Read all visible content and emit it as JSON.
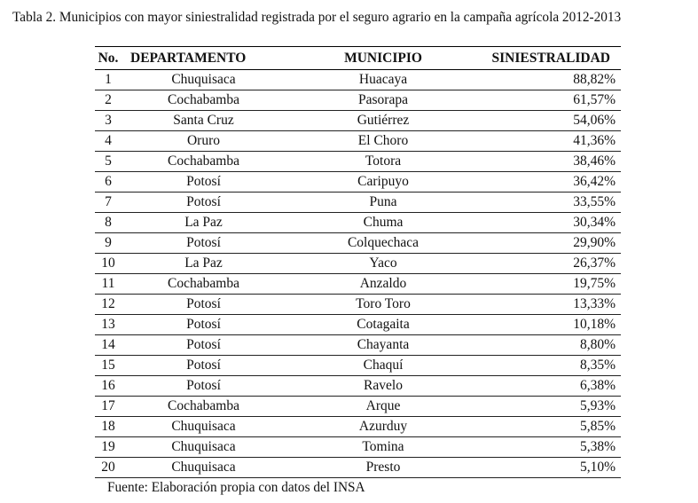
{
  "title": "Tabla 2. Municipios con mayor siniestralidad registrada por el seguro agrario en la campaña agrícola 2012-2013",
  "headers": {
    "no": "No.",
    "departamento": "DEPARTAMENTO",
    "municipio": "MUNICIPIO",
    "siniestralidad": "SINIESTRALIDAD"
  },
  "rows": [
    {
      "no": "1",
      "departamento": "Chuquisaca",
      "municipio": "Huacaya",
      "siniestralidad": "88,82%"
    },
    {
      "no": "2",
      "departamento": "Cochabamba",
      "municipio": "Pasorapa",
      "siniestralidad": "61,57%"
    },
    {
      "no": "3",
      "departamento": "Santa Cruz",
      "municipio": "Gutiérrez",
      "siniestralidad": "54,06%"
    },
    {
      "no": "4",
      "departamento": "Oruro",
      "municipio": "El Choro",
      "siniestralidad": "41,36%"
    },
    {
      "no": "5",
      "departamento": "Cochabamba",
      "municipio": "Totora",
      "siniestralidad": "38,46%"
    },
    {
      "no": "6",
      "departamento": "Potosí",
      "municipio": "Caripuyo",
      "siniestralidad": "36,42%"
    },
    {
      "no": "7",
      "departamento": "Potosí",
      "municipio": "Puna",
      "siniestralidad": "33,55%"
    },
    {
      "no": "8",
      "departamento": "La Paz",
      "municipio": "Chuma",
      "siniestralidad": "30,34%"
    },
    {
      "no": "9",
      "departamento": "Potosí",
      "municipio": "Colquechaca",
      "siniestralidad": "29,90%"
    },
    {
      "no": "10",
      "departamento": "La Paz",
      "municipio": "Yaco",
      "siniestralidad": "26,37%"
    },
    {
      "no": "11",
      "departamento": "Cochabamba",
      "municipio": "Anzaldo",
      "siniestralidad": "19,75%"
    },
    {
      "no": "12",
      "departamento": "Potosí",
      "municipio": "Toro Toro",
      "siniestralidad": "13,33%"
    },
    {
      "no": "13",
      "departamento": "Potosí",
      "municipio": "Cotagaita",
      "siniestralidad": "10,18%"
    },
    {
      "no": "14",
      "departamento": "Potosí",
      "municipio": "Chayanta",
      "siniestralidad": "8,80%"
    },
    {
      "no": "15",
      "departamento": "Potosí",
      "municipio": "Chaquí",
      "siniestralidad": "8,35%"
    },
    {
      "no": "16",
      "departamento": "Potosí",
      "municipio": "Ravelo",
      "siniestralidad": "6,38%"
    },
    {
      "no": "17",
      "departamento": "Cochabamba",
      "municipio": "Arque",
      "siniestralidad": "5,93%"
    },
    {
      "no": "18",
      "departamento": "Chuquisaca",
      "municipio": "Azurduy",
      "siniestralidad": "5,85%"
    },
    {
      "no": "19",
      "departamento": "Chuquisaca",
      "municipio": "Tomina",
      "siniestralidad": "5,38%"
    },
    {
      "no": "20",
      "departamento": "Chuquisaca",
      "municipio": "Presto",
      "siniestralidad": "5,10%"
    }
  ],
  "source": "Fuente: Elaboración propia con datos del INSA"
}
